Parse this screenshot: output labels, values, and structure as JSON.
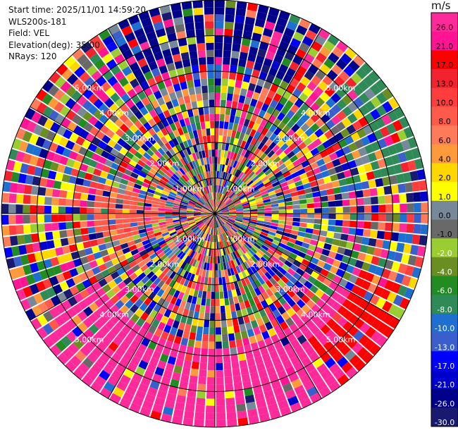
{
  "header": {
    "start_time": "Start time: 2025/11/01 14:59:20",
    "instrument": "WLS200s-181",
    "field": "Field: VEL",
    "elevation": "Elevation(deg): 35.00",
    "nrays": "NRays: 120"
  },
  "chart_data": {
    "type": "heatmap",
    "projection": "polar-ppi",
    "field": "VEL",
    "units": "m/s",
    "nrays": 120,
    "range_rings_km": [
      1.0,
      2.0,
      3.0,
      4.0,
      5.0
    ],
    "range_ring_labels": [
      "1.00km",
      "2.00km",
      "3.00km",
      "4.00km",
      "5.00km"
    ],
    "max_range_km": 6.0,
    "colorbar": {
      "title": "m/s",
      "tick_labels": [
        "26.0",
        "21.0",
        "17.0",
        "13.0",
        "10.0",
        "8.0",
        "6.0",
        "4.0",
        "2.0",
        "1.0",
        "0.0",
        "-1.0",
        "-2.0",
        "-4.0",
        "-6.0",
        "-8.0",
        "-10.0",
        "-13.0",
        "-17.0",
        "-21.0",
        "-26.0",
        "-30.0"
      ],
      "colors": [
        "#ff2a9a",
        "#ff1493",
        "#ff0000",
        "#f2222e",
        "#ff3d3d",
        "#ff5a4a",
        "#ff7b5a",
        "#ff9a3c",
        "#ffd700",
        "#ffff00",
        "#778899",
        "#696969",
        "#9acd32",
        "#6b8e23",
        "#228b22",
        "#2e8b57",
        "#1e6fd0",
        "#3a5fcd",
        "#0000ff",
        "#0000cd",
        "#00008b",
        "#191970"
      ]
    },
    "sectors": {
      "bottom": {
        "start_deg": 120,
        "end_deg": 240,
        "color": "#ff2a9a"
      },
      "lower_right": {
        "start_deg": 110,
        "end_deg": 145,
        "color": "#ff0000"
      },
      "upper_right_outer": {
        "start_deg": 45,
        "end_deg": 80,
        "color": "#2e8b57"
      },
      "top": {
        "start_deg": 330,
        "end_deg": 30,
        "color": "#00008b"
      },
      "left_inner": {
        "start_deg": 255,
        "end_deg": 285,
        "color": "#ff5a4a"
      }
    }
  }
}
